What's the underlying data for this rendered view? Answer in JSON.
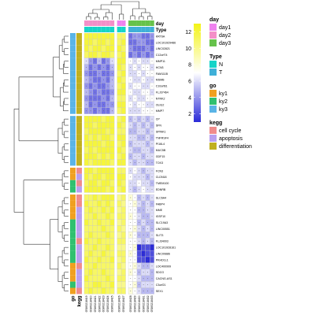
{
  "chart_data": {
    "type": "heatmap",
    "columns": [
      "GSM3218419",
      "GSM3218420",
      "GSM3218421",
      "GSM3218422",
      "GSM3218423",
      "GSM3218424",
      "GSM3218425",
      "GSM3218426",
      "GSM3218427",
      "GSM3218428",
      "GSM3218429",
      "GSM3218430",
      "GSM3218431",
      "GSM3218432",
      "GSM3218433"
    ],
    "column_annotations": {
      "day": [
        "day2",
        "day2",
        "day2",
        "day2",
        "day2",
        "day2",
        "day2",
        "day1",
        "day1",
        "day3",
        "day3",
        "day3",
        "day3",
        "day3",
        "day3"
      ],
      "Type": [
        "N",
        "N",
        "N",
        "N",
        "N",
        "N",
        "N",
        "N",
        "N",
        "T",
        "T",
        "T",
        "T",
        "T",
        "T"
      ]
    },
    "rows": [
      {
        "gene": "KRT6A",
        "kegg": "differentiation",
        "go": "ky3",
        "values": [
          12,
          12,
          12,
          12,
          12,
          12,
          12,
          11,
          11,
          3,
          4,
          4,
          3,
          3,
          4
        ]
      },
      {
        "gene": "LOC101929486",
        "kegg": "differentiation",
        "go": "ky3",
        "values": [
          12,
          12,
          11,
          12,
          12,
          11,
          12,
          11,
          12,
          3,
          3,
          4,
          4,
          3,
          3
        ]
      },
      {
        "gene": "LINC02821",
        "kegg": "differentiation",
        "go": "ky3",
        "values": [
          12,
          11,
          12,
          12,
          11,
          12,
          12,
          12,
          11,
          4,
          3,
          3,
          3,
          4,
          3
        ]
      },
      {
        "gene": "C12orf74",
        "kegg": "differentiation",
        "go": "ky3",
        "values": [
          11,
          12,
          12,
          11,
          12,
          12,
          11,
          11,
          12,
          3,
          4,
          3,
          4,
          3,
          4
        ]
      },
      {
        "gene": "MMP11",
        "kegg": "differentiation",
        "go": "ky3",
        "values": [
          6,
          4,
          3,
          5,
          3,
          4,
          6,
          12,
          12,
          7,
          6,
          7,
          6,
          6,
          7
        ]
      },
      {
        "gene": "HCN3",
        "kegg": "differentiation",
        "go": "ky3",
        "values": [
          5,
          3,
          4,
          3,
          4,
          3,
          5,
          12,
          11,
          6,
          7,
          6,
          7,
          7,
          6
        ]
      },
      {
        "gene": "FAM111B",
        "kegg": "differentiation",
        "go": "ky3",
        "values": [
          4,
          3,
          3,
          4,
          3,
          3,
          4,
          11,
          12,
          6,
          6,
          7,
          6,
          7,
          7
        ]
      },
      {
        "gene": "MSMB",
        "kegg": "differentiation",
        "go": "ky3",
        "values": [
          5,
          4,
          3,
          3,
          4,
          3,
          5,
          12,
          11,
          7,
          6,
          6,
          7,
          6,
          6
        ]
      },
      {
        "gene": "C10orf81",
        "kegg": "differentiation",
        "go": "ky3",
        "values": [
          4,
          3,
          4,
          3,
          3,
          4,
          5,
          11,
          12,
          6,
          7,
          7,
          6,
          6,
          7
        ]
      },
      {
        "gene": "FLJ37464",
        "kegg": "differentiation",
        "go": "ky3",
        "values": [
          5,
          4,
          3,
          4,
          3,
          3,
          4,
          12,
          12,
          7,
          6,
          6,
          7,
          7,
          6
        ]
      },
      {
        "gene": "NTRK2",
        "kegg": "differentiation",
        "go": "ky3",
        "values": [
          4,
          3,
          3,
          3,
          4,
          3,
          5,
          11,
          11,
          6,
          7,
          6,
          6,
          7,
          7
        ]
      },
      {
        "gene": "OLIG2",
        "kegg": "differentiation",
        "go": "ky3",
        "values": [
          5,
          3,
          4,
          3,
          3,
          4,
          4,
          12,
          12,
          7,
          6,
          7,
          7,
          6,
          6
        ]
      },
      {
        "gene": "MMP7",
        "kegg": "differentiation",
        "go": "ky3",
        "values": [
          4,
          4,
          3,
          4,
          3,
          3,
          5,
          11,
          12,
          6,
          6,
          6,
          7,
          7,
          7
        ]
      },
      {
        "gene": "CP",
        "kegg": "differentiation",
        "go": "ky3",
        "values": [
          12,
          12,
          12,
          12,
          11,
          12,
          12,
          11,
          12,
          5,
          6,
          5,
          6,
          5,
          6
        ]
      },
      {
        "gene": "SFN",
        "kegg": "differentiation",
        "go": "ky3",
        "values": [
          12,
          12,
          11,
          12,
          12,
          12,
          12,
          12,
          11,
          6,
          5,
          6,
          5,
          6,
          5
        ]
      },
      {
        "gene": "SPINK1",
        "kegg": "differentiation",
        "go": "ky3",
        "values": [
          11,
          12,
          12,
          12,
          12,
          11,
          12,
          11,
          11,
          5,
          5,
          6,
          6,
          5,
          6
        ]
      },
      {
        "gene": "TNFRSF4",
        "kegg": "differentiation",
        "go": "ky3",
        "values": [
          12,
          11,
          12,
          11,
          12,
          12,
          11,
          12,
          12,
          6,
          6,
          5,
          5,
          6,
          5
        ]
      },
      {
        "gene": "PI16L4",
        "kegg": "differentiation",
        "go": "ky3",
        "values": [
          12,
          12,
          12,
          12,
          11,
          12,
          12,
          11,
          12,
          5,
          6,
          6,
          6,
          5,
          6
        ]
      },
      {
        "gene": "MUC5B",
        "kegg": "differentiation",
        "go": "ky3",
        "values": [
          11,
          12,
          11,
          12,
          12,
          12,
          12,
          12,
          11,
          6,
          5,
          5,
          6,
          6,
          5
        ]
      },
      {
        "gene": "GDF15",
        "kegg": "differentiation",
        "go": "ky3",
        "values": [
          12,
          12,
          12,
          11,
          12,
          11,
          12,
          11,
          12,
          5,
          6,
          6,
          5,
          6,
          6
        ]
      },
      {
        "gene": "TOX3",
        "kegg": "differentiation",
        "go": "ky3",
        "values": [
          12,
          11,
          12,
          12,
          12,
          12,
          11,
          12,
          12,
          6,
          5,
          6,
          6,
          5,
          5
        ]
      },
      {
        "gene": "FCN3",
        "kegg": "cell cycle",
        "go": "ky1",
        "values": [
          12,
          12,
          11,
          12,
          12,
          12,
          12,
          11,
          11,
          6,
          7,
          6,
          5,
          6,
          6
        ]
      },
      {
        "gene": "CLDN18",
        "kegg": "apoptosis",
        "go": "ky1",
        "values": [
          12,
          11,
          12,
          12,
          11,
          12,
          12,
          12,
          12,
          7,
          6,
          6,
          6,
          5,
          6
        ]
      },
      {
        "gene": "TMEM100",
        "kegg": "cell cycle",
        "go": "ky2",
        "values": [
          11,
          12,
          12,
          11,
          12,
          12,
          11,
          12,
          11,
          6,
          6,
          7,
          6,
          6,
          5
        ]
      },
      {
        "gene": "EDNRB",
        "kegg": "apoptosis",
        "go": "ky2",
        "values": [
          12,
          12,
          12,
          12,
          12,
          11,
          12,
          11,
          12,
          6,
          5,
          6,
          7,
          6,
          6
        ]
      },
      {
        "gene": "SLC6A4",
        "kegg": "cell cycle",
        "go": "ky1",
        "values": [
          11,
          11,
          12,
          11,
          12,
          12,
          12,
          10,
          11,
          8,
          7,
          5,
          6,
          5,
          6
        ]
      },
      {
        "gene": "FABP4",
        "kegg": "cell cycle",
        "go": "ky1",
        "values": [
          12,
          11,
          11,
          12,
          11,
          12,
          11,
          11,
          10,
          7,
          8,
          6,
          5,
          6,
          5
        ]
      },
      {
        "gene": "MME",
        "kegg": "apoptosis",
        "go": "ky1",
        "values": [
          11,
          12,
          11,
          11,
          12,
          11,
          12,
          10,
          11,
          7,
          7,
          5,
          5,
          6,
          6
        ]
      },
      {
        "gene": "IGSF10",
        "kegg": "apoptosis",
        "go": "ky1",
        "values": [
          11,
          11,
          12,
          11,
          11,
          12,
          11,
          11,
          11,
          8,
          7,
          6,
          5,
          5,
          6
        ]
      },
      {
        "gene": "SLC19A3",
        "kegg": "apoptosis",
        "go": "ky2",
        "values": [
          12,
          11,
          11,
          12,
          11,
          11,
          12,
          10,
          11,
          7,
          7,
          5,
          6,
          5,
          5
        ]
      },
      {
        "gene": "LINC00551",
        "kegg": "apoptosis",
        "go": "ky2",
        "values": [
          11,
          11,
          11,
          11,
          12,
          11,
          11,
          11,
          10,
          7,
          8,
          6,
          5,
          6,
          5
        ]
      },
      {
        "gene": "SLIT3",
        "kegg": "apoptosis",
        "go": "ky2",
        "values": [
          11,
          12,
          11,
          11,
          11,
          12,
          11,
          10,
          11,
          8,
          7,
          5,
          5,
          5,
          6
        ]
      },
      {
        "gene": "FLJ34003",
        "kegg": "cell cycle",
        "go": "ky2",
        "values": [
          12,
          11,
          11,
          12,
          11,
          11,
          11,
          11,
          11,
          7,
          7,
          6,
          5,
          6,
          5
        ]
      },
      {
        "gene": "LOC101928161",
        "kegg": "apoptosis",
        "go": "ky2",
        "values": [
          11,
          11,
          12,
          11,
          11,
          12,
          11,
          10,
          10,
          7,
          8,
          1,
          2,
          2,
          1
        ]
      },
      {
        "gene": "LINC00886",
        "kegg": "apoptosis",
        "go": "ky2",
        "values": [
          11,
          12,
          11,
          11,
          12,
          11,
          11,
          11,
          11,
          8,
          7,
          2,
          1,
          2,
          2
        ]
      },
      {
        "gene": "PKHD1L1",
        "kegg": "apoptosis",
        "go": "ky2",
        "values": [
          12,
          11,
          11,
          12,
          11,
          11,
          12,
          10,
          11,
          7,
          7,
          2,
          2,
          1,
          2
        ]
      },
      {
        "gene": "LOC400999",
        "kegg": "cell cycle",
        "go": "ky1",
        "values": [
          11,
          11,
          12,
          11,
          11,
          11,
          11,
          11,
          10,
          7,
          8,
          6,
          5,
          5,
          6
        ]
      },
      {
        "gene": "SDCG",
        "kegg": "apoptosis",
        "go": "ky1",
        "values": [
          11,
          12,
          11,
          11,
          12,
          11,
          11,
          10,
          11,
          8,
          7,
          5,
          6,
          6,
          5
        ]
      },
      {
        "gene": "CACNG-AS1",
        "kegg": "apoptosis",
        "go": "ky1",
        "values": [
          12,
          11,
          11,
          11,
          11,
          12,
          11,
          11,
          11,
          7,
          7,
          6,
          5,
          5,
          5
        ]
      },
      {
        "gene": "C3orf21",
        "kegg": "apoptosis",
        "go": "ky2",
        "values": [
          11,
          11,
          12,
          12,
          11,
          11,
          12,
          10,
          10,
          7,
          8,
          5,
          6,
          6,
          6
        ]
      },
      {
        "gene": "SEX1",
        "kegg": "cell cycle",
        "go": "ky1",
        "values": [
          11,
          12,
          11,
          11,
          12,
          11,
          11,
          11,
          11,
          8,
          7,
          6,
          5,
          5,
          5
        ]
      }
    ],
    "row_gaps_after": [
      12,
      20,
      24
    ],
    "column_gaps_after": [
      6,
      8
    ],
    "color_scale": {
      "min": 1,
      "max": 13,
      "ticks": [
        2,
        4,
        6,
        8,
        10,
        12
      ],
      "colors": [
        "#2a2ad8",
        "#ffffff",
        "#f3f316"
      ]
    },
    "legends": {
      "day": {
        "title": "day",
        "entries": [
          {
            "label": "day1",
            "color": "#ee82ee"
          },
          {
            "label": "day2",
            "color": "#f48fc8"
          },
          {
            "label": "day3",
            "color": "#66c24b"
          }
        ]
      },
      "Type": {
        "title": "Type",
        "entries": [
          {
            "label": "N",
            "color": "#14d4c8"
          },
          {
            "label": "T",
            "color": "#3fb0d8"
          }
        ]
      },
      "go": {
        "title": "go",
        "entries": [
          {
            "label": "ky1",
            "color": "#f0a020"
          },
          {
            "label": "ky2",
            "color": "#30c070"
          },
          {
            "label": "ky3",
            "color": "#5ab4e6"
          }
        ]
      },
      "kegg": {
        "title": "kegg",
        "entries": [
          {
            "label": "cell cycle",
            "color": "#f08c8c"
          },
          {
            "label": "apoptosis",
            "color": "#b8a0f0"
          },
          {
            "label": "differentiation",
            "color": "#c0b020"
          }
        ]
      }
    },
    "annotation_labels": {
      "top": [
        "day",
        "Type"
      ],
      "left": [
        "go",
        "kegg"
      ]
    }
  }
}
